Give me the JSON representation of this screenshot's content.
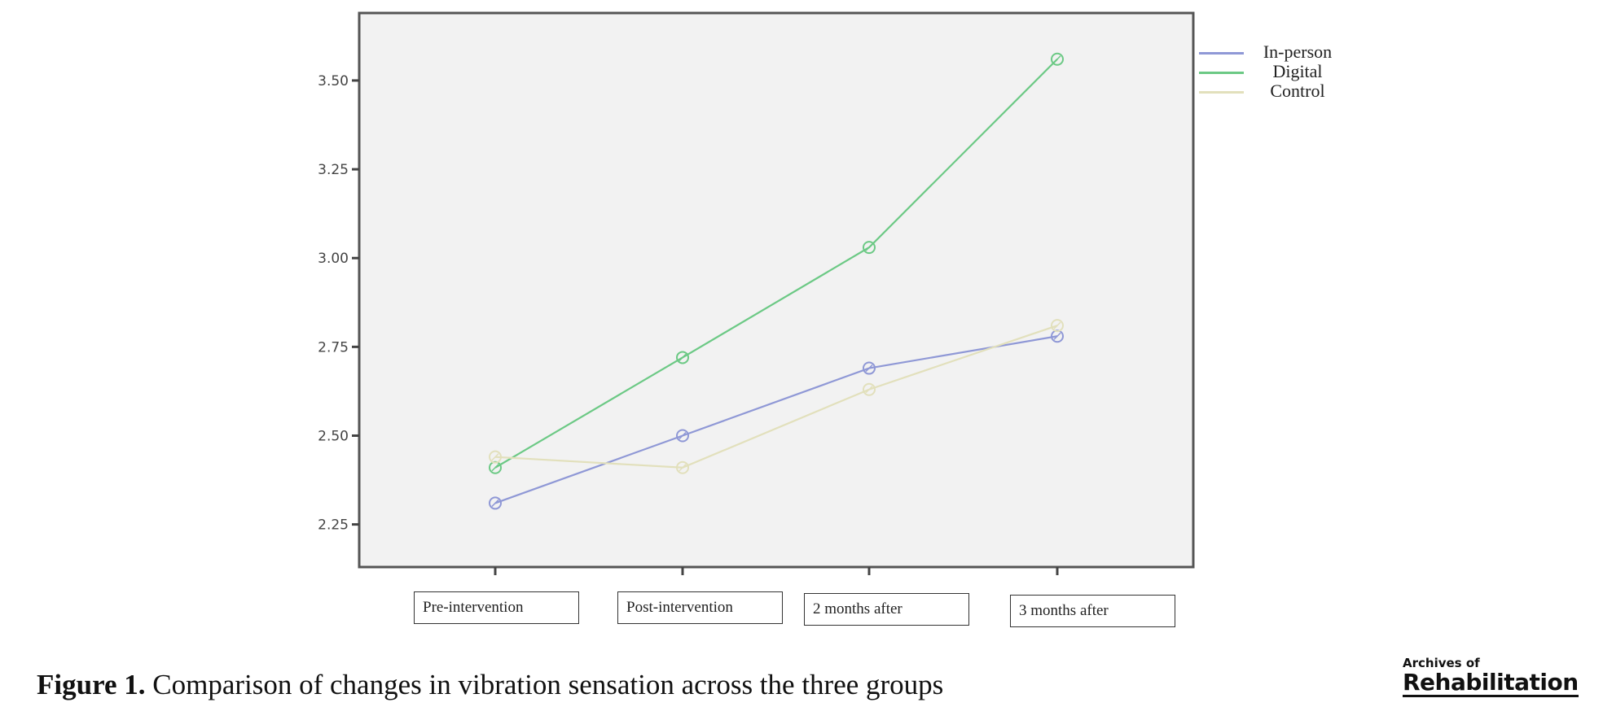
{
  "chart_data": {
    "type": "line",
    "categories": [
      "Pre-intervention",
      "Post-intervention",
      "2 months after",
      "3 months after"
    ],
    "series": [
      {
        "name": "In-person",
        "color": "#8f98d6",
        "values": [
          2.31,
          2.5,
          2.69,
          2.78
        ]
      },
      {
        "name": "Digital",
        "color": "#6cc985",
        "values": [
          2.41,
          2.72,
          3.03,
          3.56
        ]
      },
      {
        "name": "Control",
        "color": "#e2e0bc",
        "values": [
          2.44,
          2.41,
          2.63,
          2.81
        ]
      }
    ],
    "y_ticks": [
      "2.25",
      "2.50",
      "2.75",
      "3.00",
      "3.25",
      "3.50"
    ],
    "ylim": [
      2.13,
      3.69
    ],
    "title": "",
    "xlabel": "",
    "ylabel": "",
    "grid": false,
    "legend_position": "top-right",
    "plot_background": "#f2f2f2"
  },
  "caption": {
    "label": "Figure 1.",
    "text": " Comparison of changes in vibration sensation across the three groups"
  },
  "brand": {
    "line1": "Archives of",
    "line2": "Rehabilitation"
  }
}
